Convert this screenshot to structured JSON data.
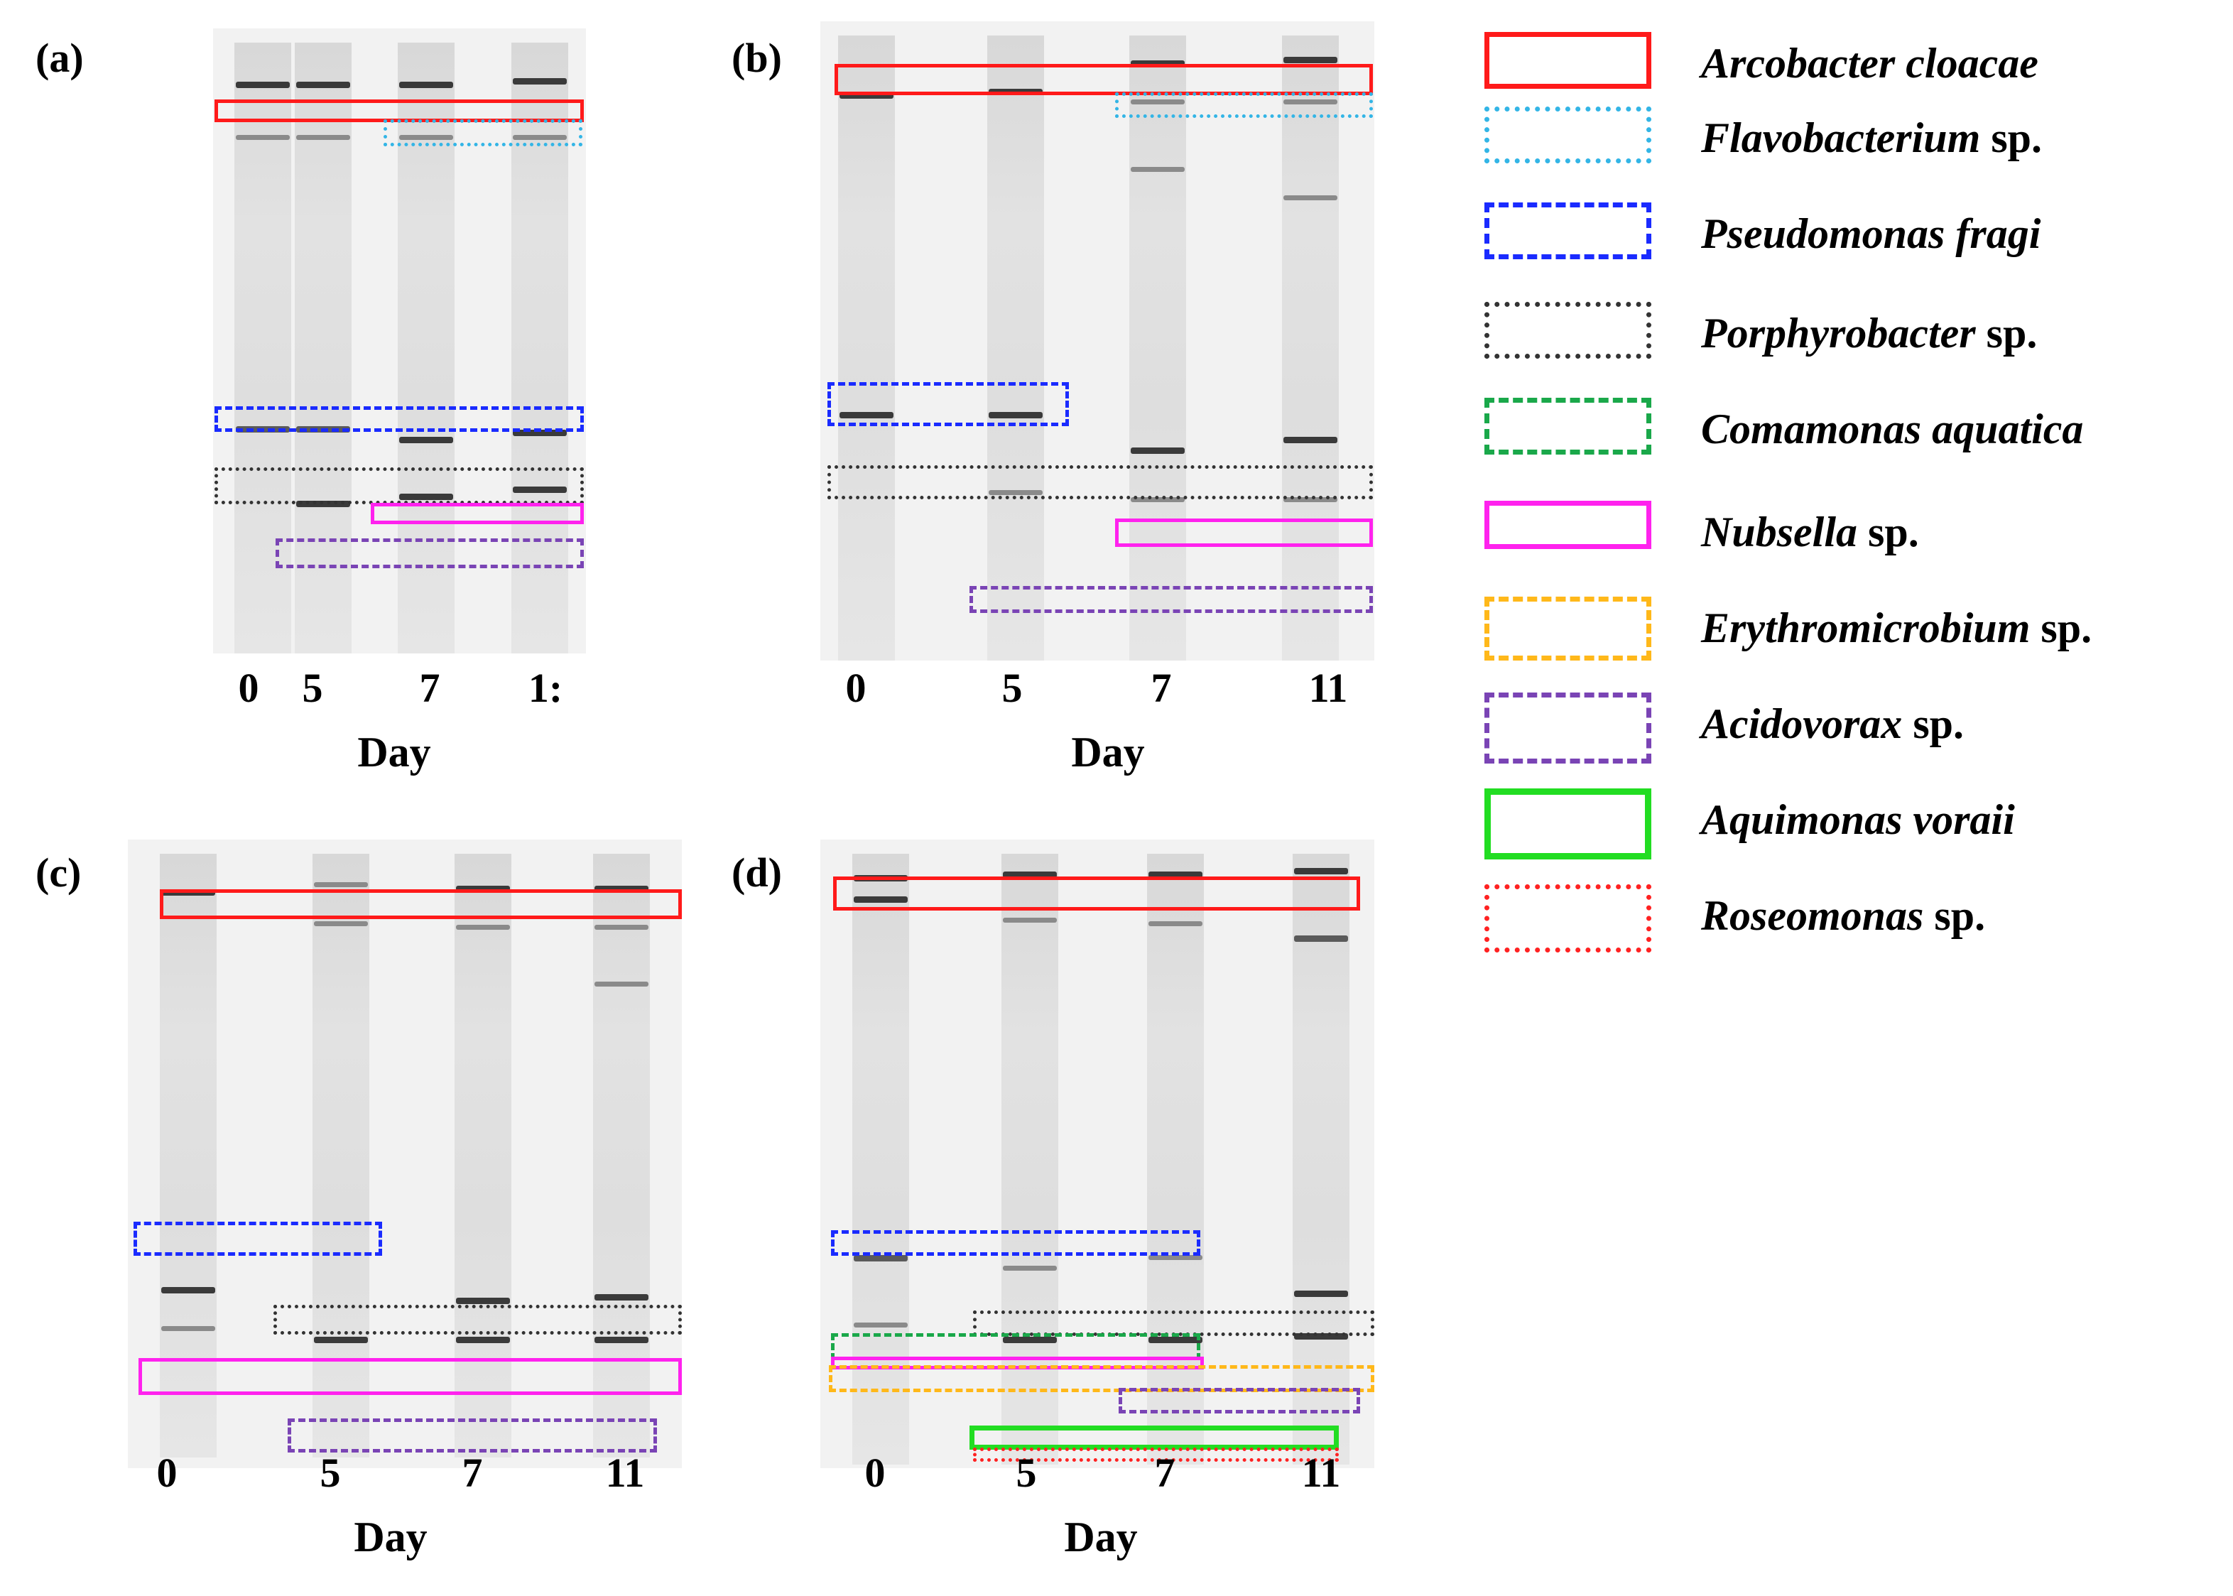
{
  "panels": {
    "a": {
      "label": "(a)",
      "ticks": [
        "0",
        "5",
        "7",
        "1:"
      ],
      "xlabel": "Day"
    },
    "b": {
      "label": "(b)",
      "ticks": [
        "0",
        "5",
        "7",
        "11"
      ],
      "xlabel": "Day"
    },
    "c": {
      "label": "(c)",
      "ticks": [
        "0",
        "5",
        "7",
        "11"
      ],
      "xlabel": "Day"
    },
    "d": {
      "label": "(d)",
      "ticks": [
        "0",
        "5",
        "7",
        "11"
      ],
      "xlabel": "Day"
    }
  },
  "legend": [
    {
      "species": "Arcobacter cloacae",
      "suffix": "",
      "color": "#ff1a1a",
      "style": "solid"
    },
    {
      "species": "Flavobacterium",
      "suffix": " sp.",
      "color": "#33b5e6",
      "style": "dotted"
    },
    {
      "species": "Pseudomonas fragi",
      "suffix": "",
      "color": "#1a2bff",
      "style": "dashed"
    },
    {
      "species": "Porphyrobacter",
      "suffix": " sp.",
      "color": "#333333",
      "style": "dotted"
    },
    {
      "species": "Comamonas aquatica",
      "suffix": "",
      "color": "#1aa84a",
      "style": "dash-dot"
    },
    {
      "species": "Nubsella",
      "suffix": " sp.",
      "color": "#ff22ee",
      "style": "solid"
    },
    {
      "species": "Erythromicrobium",
      "suffix": " sp.",
      "color": "#ffb81a",
      "style": "dashed"
    },
    {
      "species": "Acidovorax",
      "suffix": " sp.",
      "color": "#7a44b5",
      "style": "dashed"
    },
    {
      "species": "Aquimonas voraii",
      "suffix": "",
      "color": "#22dd22",
      "style": "solid-thick"
    },
    {
      "species": "Roseomonas",
      "suffix": " sp.",
      "color": "#ff2222",
      "style": "dotted"
    }
  ]
}
